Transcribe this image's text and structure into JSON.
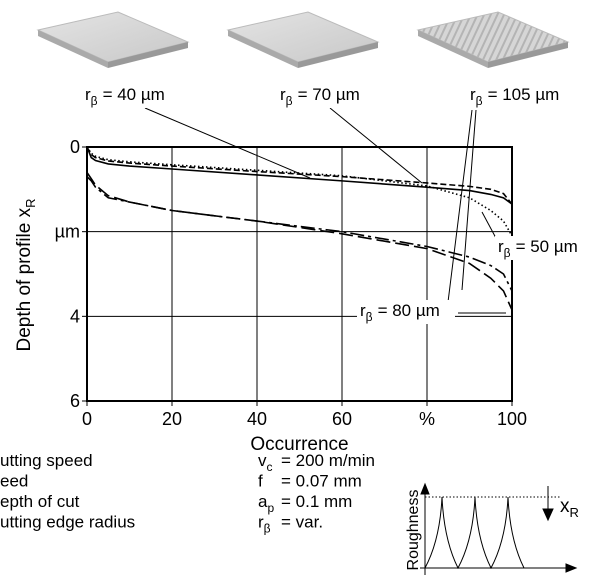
{
  "chart_data": {
    "type": "line",
    "xlabel": "Occurrence",
    "ylabel": {
      "text": "Depth of profile x",
      "subscript": "R"
    },
    "xlim": [
      0,
      100
    ],
    "ylim": [
      0,
      6
    ],
    "y_inverted": true,
    "grid": true,
    "xticks": [
      0,
      20,
      40,
      60,
      {
        "value": 80,
        "label": "%"
      },
      100
    ],
    "yticks": [
      0,
      {
        "value": 2,
        "label": "µm"
      },
      4,
      6
    ],
    "x": [
      0,
      1,
      2,
      5,
      10,
      20,
      40,
      60,
      80,
      90,
      95,
      98,
      100
    ],
    "series": [
      {
        "label": {
          "symbol": "r",
          "subscript": "β",
          "text": "= 40 µm"
        },
        "color": "#000000",
        "linestyle": "solid",
        "values": [
          0,
          0.25,
          0.32,
          0.4,
          0.45,
          0.52,
          0.66,
          0.8,
          0.95,
          1.03,
          1.12,
          1.2,
          1.35
        ]
      },
      {
        "label": {
          "symbol": "r",
          "subscript": "β",
          "text": "= 70 µm"
        },
        "color": "#000000",
        "linestyle": "dashed",
        "values": [
          0,
          0.18,
          0.25,
          0.33,
          0.38,
          0.45,
          0.58,
          0.7,
          0.85,
          0.93,
          1.0,
          1.1,
          1.35
        ]
      },
      {
        "label": {
          "symbol": "r",
          "subscript": "β",
          "text": "= 105 µm"
        },
        "color": "#000000",
        "linestyle": "dash-dot",
        "values": [
          0.7,
          0.8,
          0.95,
          1.2,
          1.3,
          1.5,
          1.75,
          2.0,
          2.35,
          2.6,
          2.8,
          3.0,
          3.4
        ]
      },
      {
        "label": {
          "symbol": "r",
          "subscript": "β",
          "text": "= 50 µm"
        },
        "color": "#000000",
        "linestyle": "dotted",
        "values": [
          0,
          0.15,
          0.22,
          0.3,
          0.35,
          0.42,
          0.55,
          0.68,
          0.92,
          1.2,
          1.5,
          1.75,
          2.1
        ]
      },
      {
        "label": {
          "symbol": "r",
          "subscript": "β",
          "text": "= 80 µm"
        },
        "color": "#000000",
        "linestyle": "long-dash",
        "values": [
          0.6,
          0.75,
          0.9,
          1.15,
          1.3,
          1.5,
          1.75,
          2.05,
          2.4,
          2.75,
          3.1,
          3.4,
          3.85
        ]
      }
    ]
  },
  "conditions": [
    {
      "name": "utting speed",
      "symbol": "v",
      "subscript": "c",
      "value": "= 200 m/min"
    },
    {
      "name": "eed",
      "symbol": "f",
      "value": "= 0.07 mm"
    },
    {
      "name": "epth of cut",
      "symbol": "a",
      "subscript": "p",
      "value": "= 0.1 mm"
    },
    {
      "name": "utting edge radius",
      "symbol": "r",
      "subscript": "β",
      "value": "= var."
    }
  ],
  "inset": {
    "ylabel": "Roughness",
    "label": {
      "symbol": "x",
      "subscript": "R"
    }
  }
}
